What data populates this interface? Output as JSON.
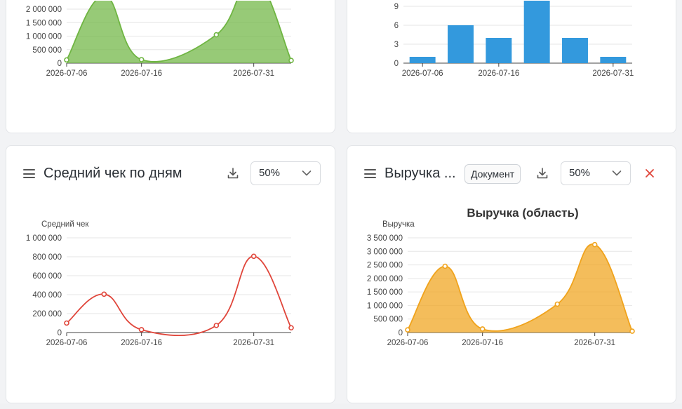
{
  "colors": {
    "green": "#6fb542",
    "blue": "#3399dd",
    "red": "#e0453a",
    "orange": "#f0a31c"
  },
  "cards": [
    {
      "id": "tl",
      "title": "",
      "zoom": ""
    },
    {
      "id": "tr",
      "title": "",
      "zoom": ""
    },
    {
      "id": "bl",
      "title": "Средний чек по дням",
      "zoom": "50%"
    },
    {
      "id": "br",
      "title": "Выручка ...",
      "zoom": "50%",
      "doc_label": "Документ"
    }
  ],
  "chart_data": [
    {
      "type": "area",
      "title": "",
      "ylabel": "",
      "x": [
        "2026-07-06",
        "2026-07-11",
        "2026-07-16",
        "2026-07-26",
        "2026-07-31",
        "2026-08-05"
      ],
      "x_tick_labels": [
        "2026-07-06",
        "2026-07-16",
        "2026-07-31"
      ],
      "yticks": [
        "0",
        "500 000",
        "1 000 000",
        "1 500 000",
        "2 000 000"
      ],
      "ylim": [
        0,
        2000000
      ],
      "values": [
        120000,
        2500000,
        130000,
        1050000,
        3200000,
        100000
      ],
      "grid": true
    },
    {
      "type": "bar",
      "title": "",
      "x": [
        "2026-07-06",
        "2026-07-11",
        "2026-07-16",
        "2026-07-21",
        "2026-07-26",
        "2026-07-31"
      ],
      "x_tick_labels": [
        "2026-07-06",
        "2026-07-16",
        "2026-07-31"
      ],
      "yticks": [
        "0",
        "3",
        "6",
        "9"
      ],
      "ylim": [
        0,
        9
      ],
      "values": [
        1,
        6,
        4,
        10,
        4,
        1
      ],
      "grid": true
    },
    {
      "type": "line",
      "title": "",
      "ylabel": "Средний чек",
      "x": [
        "2026-07-06",
        "2026-07-11",
        "2026-07-16",
        "2026-07-26",
        "2026-07-31",
        "2026-08-05"
      ],
      "x_tick_labels": [
        "2026-07-06",
        "2026-07-16",
        "2026-07-31"
      ],
      "yticks": [
        "0",
        "200 000",
        "400 000",
        "600 000",
        "800 000",
        "1 000 000"
      ],
      "ylim": [
        0,
        1000000
      ],
      "values": [
        100000,
        405000,
        30000,
        75000,
        805000,
        50000
      ],
      "grid": true
    },
    {
      "type": "area",
      "title": "Выручка (область)",
      "ylabel": "Выручка",
      "x": [
        "2026-07-06",
        "2026-07-11",
        "2026-07-16",
        "2026-07-26",
        "2026-07-31",
        "2026-08-05"
      ],
      "x_tick_labels": [
        "2026-07-06",
        "2026-07-16",
        "2026-07-31"
      ],
      "yticks": [
        "0",
        "500 000",
        "1 000 000",
        "1 500 000",
        "2 000 000",
        "2 500 000",
        "3 000 000",
        "3 500 000"
      ],
      "ylim": [
        0,
        3500000
      ],
      "values": [
        100000,
        2450000,
        130000,
        1050000,
        3250000,
        50000
      ],
      "grid": true
    }
  ]
}
